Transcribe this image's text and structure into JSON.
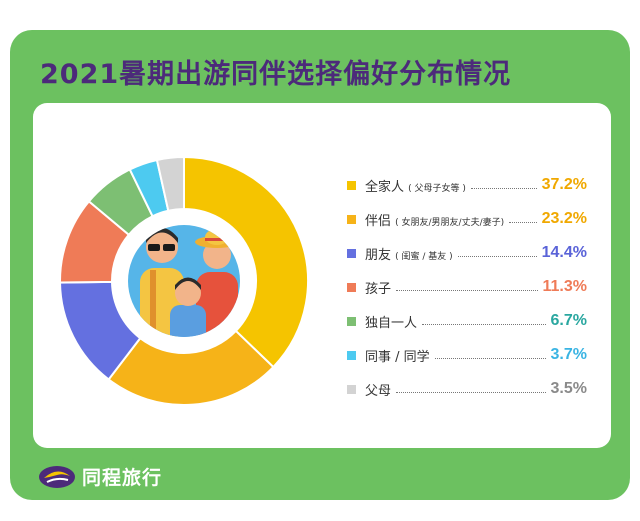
{
  "title": "2021暑期出游同伴选择偏好分布情况",
  "brand": {
    "name": "同程旅行",
    "icon": "tongcheng-logo-icon"
  },
  "colors": {
    "frame": "#6cc160",
    "title": "#4c2a7a",
    "panel": "#ffffff"
  },
  "chart_data": {
    "type": "pie",
    "title": "2021暑期出游同伴选择偏好分布情况",
    "donut": true,
    "series": [
      {
        "name": "全家人",
        "note": "( 父母子女等 )",
        "value": 37.2,
        "label": "37.2%",
        "color": "#f5c400"
      },
      {
        "name": "伴侣",
        "note": "( 女朋友/男朋友/丈夫/妻子)",
        "value": 23.2,
        "label": "23.2%",
        "color": "#f6b318"
      },
      {
        "name": "朋友",
        "note": "( 闺蜜 / 基友 )",
        "value": 14.4,
        "label": "14.4%",
        "color": "#6470e0"
      },
      {
        "name": "孩子",
        "note": "",
        "value": 11.3,
        "label": "11.3%",
        "color": "#ef7b57"
      },
      {
        "name": "独自一人",
        "note": "",
        "value": 6.7,
        "label": "6.7%",
        "color": "#7dbf73"
      },
      {
        "name": "同事 / 同学",
        "note": "",
        "value": 3.7,
        "label": "3.7%",
        "color": "#4dcaf0"
      },
      {
        "name": "父母",
        "note": "",
        "value": 3.5,
        "label": "3.5%",
        "color": "#d3d3d3"
      }
    ],
    "value_colors": [
      "#f0a800",
      "#f0a800",
      "#5a63d8",
      "#ef7b57",
      "#2aa7a0",
      "#3ab4e3",
      "#8a8a8a"
    ]
  }
}
